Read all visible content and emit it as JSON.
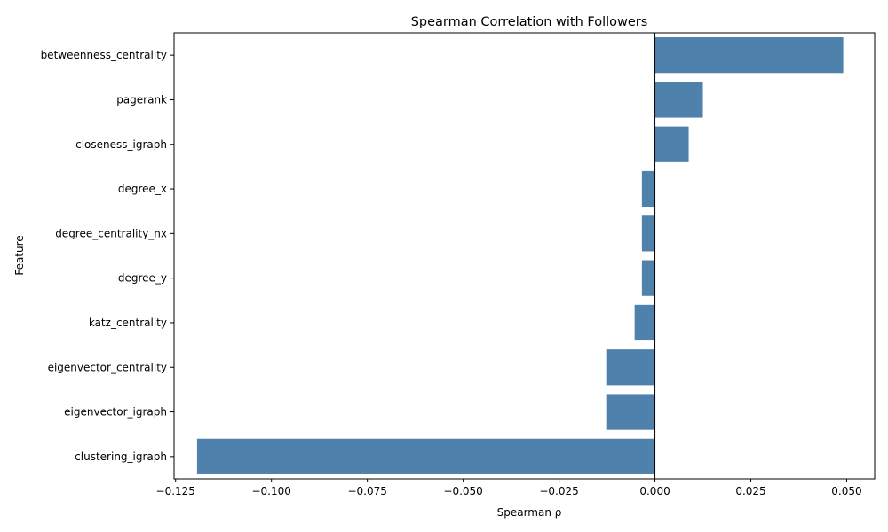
{
  "chart_data": {
    "type": "bar",
    "orientation": "horizontal",
    "title": "Spearman Correlation with Followers",
    "xlabel": "Spearman ρ",
    "ylabel": "Feature",
    "categories": [
      "betweenness_centrality",
      "pagerank",
      "closeness_igraph",
      "degree_x",
      "degree_centrality_nx",
      "degree_y",
      "katz_centrality",
      "eigenvector_centrality",
      "eigenvector_igraph",
      "clustering_igraph"
    ],
    "values": [
      0.0491,
      0.0125,
      0.0088,
      -0.0034,
      -0.0034,
      -0.0034,
      -0.0053,
      -0.0127,
      -0.0127,
      -0.1194
    ],
    "xlim": [
      -0.1254,
      0.0573
    ],
    "xticks": [
      -0.125,
      -0.1,
      -0.075,
      -0.05,
      -0.025,
      0.0,
      0.025,
      0.05
    ],
    "xtick_labels": [
      "−0.125",
      "−0.100",
      "−0.075",
      "−0.050",
      "−0.025",
      "0.000",
      "0.025",
      "0.050"
    ],
    "grid": false,
    "zero_line": true,
    "colors": {
      "bar": "#4f81ad",
      "axis": "#000000",
      "background": "#ffffff"
    }
  }
}
